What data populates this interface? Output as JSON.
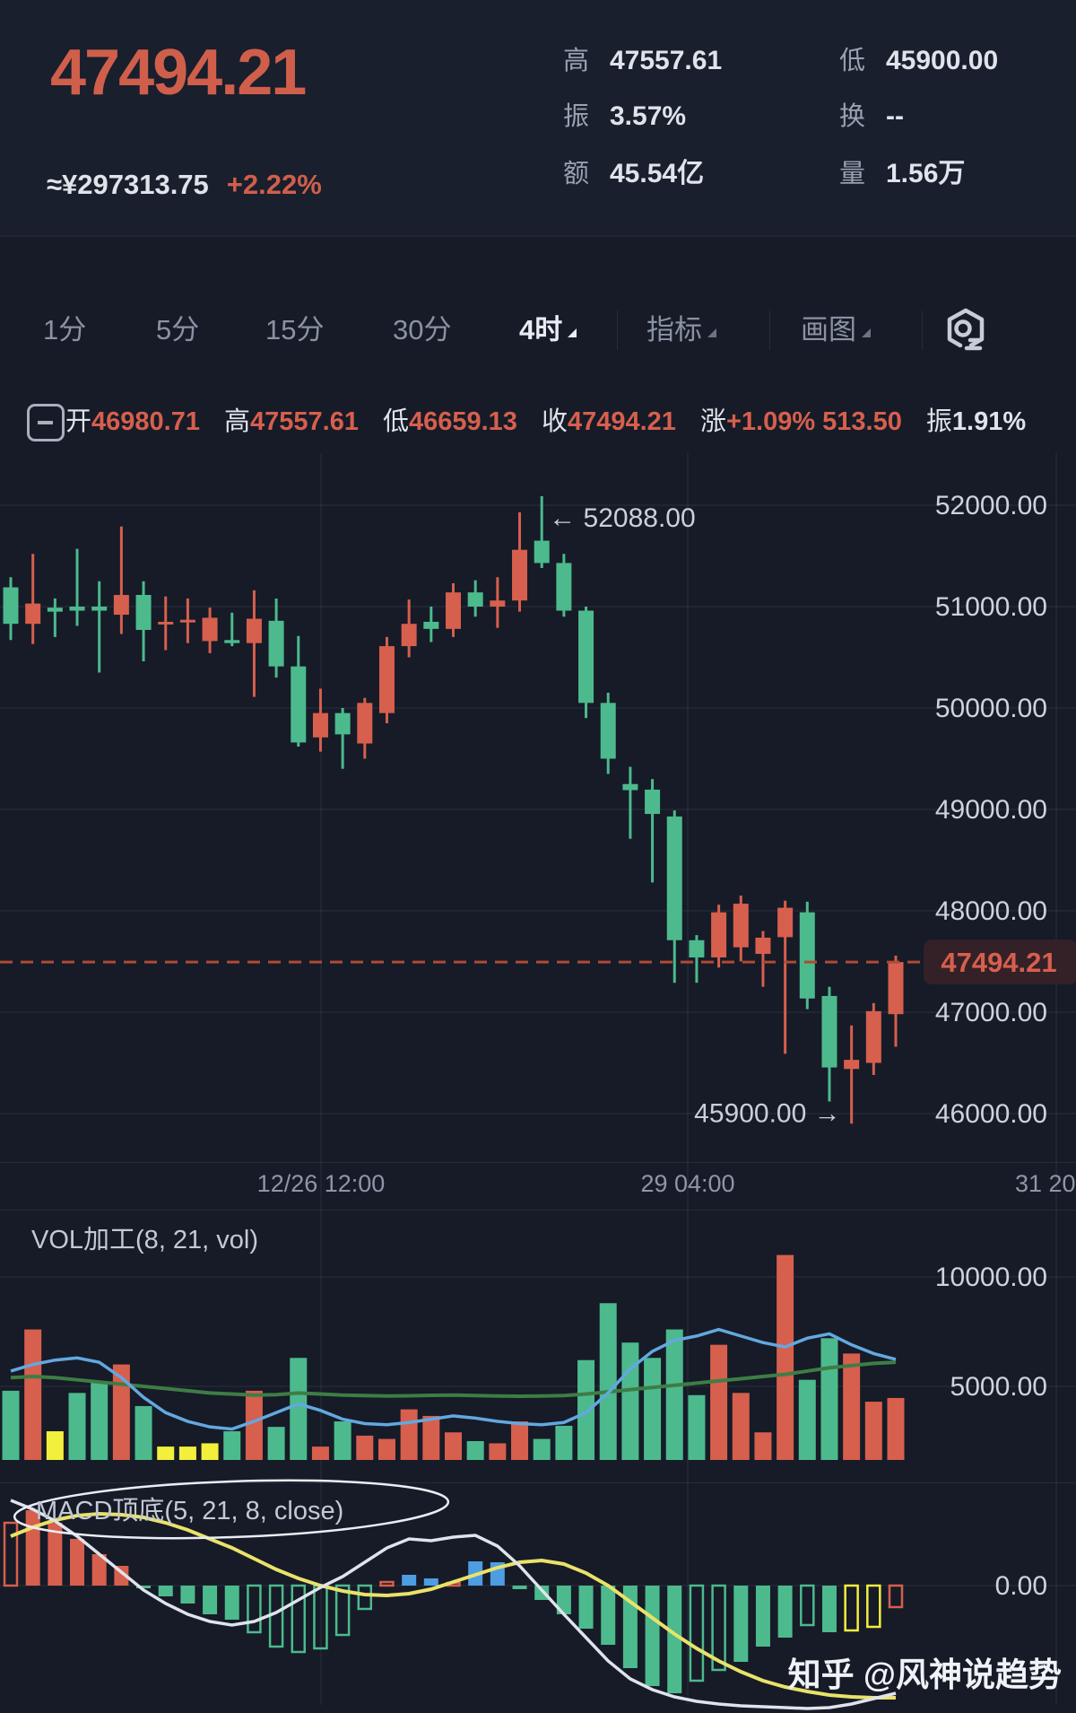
{
  "header": {
    "price": "47494.21",
    "approx_cny": "≈¥297313.75",
    "change_pct": "+2.22%",
    "stats_col1": [
      {
        "label": "高",
        "value": "47557.61"
      },
      {
        "label": "振",
        "value": "3.57%"
      },
      {
        "label": "额",
        "value": "45.54亿"
      }
    ],
    "stats_col2": [
      {
        "label": "低",
        "value": "45900.00"
      },
      {
        "label": "换",
        "value": "--"
      },
      {
        "label": "量",
        "value": "1.56万"
      }
    ]
  },
  "toolbar": {
    "tabs": [
      {
        "label": "1分",
        "selected": false,
        "caret": false
      },
      {
        "label": "5分",
        "selected": false,
        "caret": false
      },
      {
        "label": "15分",
        "selected": false,
        "caret": false
      },
      {
        "label": "30分",
        "selected": false,
        "caret": false
      },
      {
        "label": "4时",
        "selected": true,
        "caret": true
      },
      {
        "label": "指标",
        "selected": false,
        "caret": true
      },
      {
        "label": "画图",
        "selected": false,
        "caret": true
      }
    ],
    "settings_icon": "kline-settings-icon"
  },
  "ohlc_bar": {
    "items": [
      {
        "label": "开",
        "value": "46980.71",
        "plain": false
      },
      {
        "label": "高",
        "value": "47557.61",
        "plain": false
      },
      {
        "label": "低",
        "value": "46659.13",
        "plain": false
      },
      {
        "label": "收",
        "value": "47494.21",
        "plain": false
      },
      {
        "label": "涨",
        "value": "+1.09% 513.50",
        "plain": false
      },
      {
        "label": "振",
        "value": "1.91%",
        "plain": true
      }
    ]
  },
  "chart_data": {
    "type": "candlestick",
    "note": "Chinese color convention: red = up, green = down",
    "current_price": "47494.21",
    "high_annotation": "← 52088.00",
    "low_annotation": "45900.00 →",
    "y_ticks": [
      {
        "price": 52000,
        "label": "52000.00"
      },
      {
        "price": 51000,
        "label": "51000.00"
      },
      {
        "price": 50000,
        "label": "50000.00"
      },
      {
        "price": 49000,
        "label": "49000.00"
      },
      {
        "price": 48000,
        "label": "48000.00"
      },
      {
        "price": 47000,
        "label": "47000.00"
      },
      {
        "price": 46000,
        "label": "46000.00"
      }
    ],
    "x_ticks": [
      "12/26 12:00",
      "29 04:00",
      "31 20:"
    ],
    "candles_ohlc": [
      [
        51190,
        51290,
        50670,
        50830
      ],
      [
        50830,
        51520,
        50630,
        51030
      ],
      [
        50990,
        51080,
        50700,
        50950
      ],
      [
        51000,
        51570,
        50810,
        50960
      ],
      [
        51000,
        51250,
        50350,
        50960
      ],
      [
        50920,
        51790,
        50730,
        51115
      ],
      [
        51115,
        51250,
        50460,
        50770
      ],
      [
        50830,
        51100,
        50570,
        50850
      ],
      [
        50850,
        51080,
        50640,
        50870
      ],
      [
        50660,
        50990,
        50540,
        50890
      ],
      [
        50670,
        50940,
        50610,
        50640
      ],
      [
        50640,
        51160,
        50110,
        50880
      ],
      [
        50860,
        51080,
        50300,
        50410
      ],
      [
        50410,
        50710,
        49620,
        49660
      ],
      [
        49710,
        50190,
        49570,
        49950
      ],
      [
        49950,
        50000,
        49400,
        49740
      ],
      [
        49650,
        50100,
        49500,
        50050
      ],
      [
        49950,
        50700,
        49850,
        50610
      ],
      [
        50610,
        51070,
        50500,
        50830
      ],
      [
        50850,
        51000,
        50650,
        50780
      ],
      [
        50780,
        51230,
        50700,
        51140
      ],
      [
        51140,
        51260,
        50900,
        51000
      ],
      [
        51000,
        51290,
        50790,
        51060
      ],
      [
        51060,
        51930,
        50950,
        51560
      ],
      [
        51650,
        52088,
        51380,
        51430
      ],
      [
        51430,
        51520,
        50900,
        50960
      ],
      [
        50960,
        51000,
        49900,
        50050
      ],
      [
        50050,
        50150,
        49350,
        49500
      ],
      [
        49250,
        49420,
        48710,
        49190
      ],
      [
        49195,
        49300,
        48280,
        48955
      ],
      [
        48930,
        48990,
        47290,
        47710
      ],
      [
        47710,
        47760,
        47290,
        47540
      ],
      [
        47540,
        48060,
        47440,
        47985
      ],
      [
        47640,
        48150,
        47500,
        48070
      ],
      [
        47575,
        47800,
        47250,
        47735
      ],
      [
        47740,
        48100,
        46590,
        48030
      ],
      [
        47985,
        48090,
        47030,
        47135
      ],
      [
        47160,
        47250,
        46120,
        46455
      ],
      [
        46440,
        46870,
        45900,
        46530
      ],
      [
        46500,
        47090,
        46380,
        47010
      ],
      [
        46980.71,
        47557.61,
        46659.13,
        47494.21
      ]
    ],
    "volume": {
      "title": "VOL加工(8, 21, vol)",
      "ticks": [
        {
          "v": 10000,
          "label": "10000.00"
        },
        {
          "v": 5000,
          "label": "5000.00"
        }
      ],
      "bars": [
        [
          4800,
          "down"
        ],
        [
          7600,
          "up"
        ],
        [
          2950,
          "warn"
        ],
        [
          4700,
          "down"
        ],
        [
          5200,
          "down"
        ],
        [
          6000,
          "up"
        ],
        [
          4100,
          "down"
        ],
        [
          2250,
          "warn"
        ],
        [
          2250,
          "warn"
        ],
        [
          2400,
          "warn"
        ],
        [
          2950,
          "down"
        ],
        [
          4800,
          "up"
        ],
        [
          3150,
          "down"
        ],
        [
          6300,
          "down"
        ],
        [
          2250,
          "up"
        ],
        [
          3400,
          "down"
        ],
        [
          2750,
          "up"
        ],
        [
          2600,
          "up"
        ],
        [
          3950,
          "up"
        ],
        [
          3650,
          "up"
        ],
        [
          2900,
          "up"
        ],
        [
          2500,
          "down"
        ],
        [
          2400,
          "up"
        ],
        [
          3400,
          "up"
        ],
        [
          2600,
          "down"
        ],
        [
          3200,
          "down"
        ],
        [
          6200,
          "down"
        ],
        [
          8800,
          "down"
        ],
        [
          7000,
          "down"
        ],
        [
          6300,
          "down"
        ],
        [
          7600,
          "down"
        ],
        [
          4600,
          "down"
        ],
        [
          6900,
          "up"
        ],
        [
          4700,
          "up"
        ],
        [
          2900,
          "up"
        ],
        [
          11000,
          "up"
        ],
        [
          5300,
          "down"
        ],
        [
          7200,
          "down"
        ],
        [
          6500,
          "up"
        ],
        [
          4300,
          "up"
        ],
        [
          4470,
          "up"
        ]
      ],
      "ma_fast": [
        5700,
        6000,
        6200,
        6300,
        6100,
        5400,
        4500,
        3800,
        3400,
        3150,
        3050,
        3400,
        3800,
        4200,
        3900,
        3500,
        3300,
        3250,
        3350,
        3500,
        3650,
        3550,
        3400,
        3300,
        3250,
        3350,
        3800,
        4700,
        5800,
        6600,
        7100,
        7300,
        7600,
        7300,
        7000,
        6800,
        7200,
        7400,
        6900,
        6500,
        6230
      ],
      "ma_slow": [
        5400,
        5450,
        5400,
        5300,
        5200,
        5100,
        5000,
        4900,
        4800,
        4700,
        4650,
        4600,
        4620,
        4700,
        4650,
        4600,
        4580,
        4560,
        4570,
        4590,
        4600,
        4580,
        4560,
        4550,
        4560,
        4580,
        4650,
        4750,
        4850,
        4950,
        5050,
        5150,
        5250,
        5350,
        5450,
        5550,
        5700,
        5850,
        5950,
        6050,
        6100
      ]
    },
    "macd": {
      "title": "MACD顶底(5, 21, 8, close)",
      "zero_label": "0.00",
      "bars": [
        [
          70,
          "up",
          "h"
        ],
        [
          84,
          "up",
          "f"
        ],
        [
          70,
          "up",
          "f"
        ],
        [
          52,
          "up",
          "f"
        ],
        [
          35,
          "up",
          "f"
        ],
        [
          22,
          "up",
          "f"
        ],
        [
          -3,
          "down",
          "f"
        ],
        [
          -12,
          "down",
          "f"
        ],
        [
          -20,
          "down",
          "f"
        ],
        [
          -32,
          "down",
          "f"
        ],
        [
          -38,
          "down",
          "f"
        ],
        [
          -52,
          "down",
          "h"
        ],
        [
          -68,
          "down",
          "h"
        ],
        [
          -74,
          "down",
          "h"
        ],
        [
          -70,
          "down",
          "h"
        ],
        [
          -55,
          "down",
          "h"
        ],
        [
          -26,
          "down",
          "h"
        ],
        [
          4,
          "up",
          "h"
        ],
        [
          12,
          "blue",
          "f"
        ],
        [
          8,
          "blue",
          "f"
        ],
        [
          3,
          "up",
          "h"
        ],
        [
          27,
          "blue",
          "f"
        ],
        [
          26,
          "blue",
          "f"
        ],
        [
          -4,
          "down",
          "f"
        ],
        [
          -16,
          "down",
          "f"
        ],
        [
          -32,
          "down",
          "f"
        ],
        [
          -48,
          "down",
          "f"
        ],
        [
          -66,
          "down",
          "f"
        ],
        [
          -92,
          "down",
          "f"
        ],
        [
          -112,
          "down",
          "f"
        ],
        [
          -120,
          "down",
          "f"
        ],
        [
          -106,
          "down",
          "h"
        ],
        [
          -94,
          "down",
          "h"
        ],
        [
          -85,
          "down",
          "f"
        ],
        [
          -68,
          "down",
          "f"
        ],
        [
          -58,
          "down",
          "f"
        ],
        [
          -44,
          "down",
          "h"
        ],
        [
          -52,
          "down",
          "f"
        ],
        [
          -50,
          "warn",
          "h"
        ],
        [
          -46,
          "warn",
          "h"
        ],
        [
          -24,
          "up",
          "h"
        ]
      ],
      "dif_line": [
        95,
        85,
        72,
        55,
        35,
        15,
        -5,
        -20,
        -32,
        -40,
        -44,
        -40,
        -30,
        -16,
        -2,
        10,
        26,
        42,
        52,
        50,
        54,
        56,
        44,
        22,
        -5,
        -32,
        -58,
        -84,
        -104,
        -116,
        -124,
        -129,
        -132,
        -134,
        -135,
        -136,
        -137,
        -136,
        -132,
        -126,
        -120
      ],
      "dea_line": [
        55,
        65,
        73,
        78,
        80,
        79,
        76,
        70,
        62,
        52,
        42,
        30,
        18,
        8,
        0,
        -6,
        -10,
        -11,
        -9,
        -4,
        4,
        12,
        20,
        26,
        28,
        24,
        14,
        0,
        -18,
        -36,
        -54,
        -70,
        -84,
        -96,
        -106,
        -113,
        -118,
        -122,
        -124,
        -125,
        -125
      ]
    }
  },
  "watermark": "知乎 @风神说趋势",
  "colors": {
    "bg": "#161b27",
    "header_bg": "#191f2c",
    "up": "#d75f4d",
    "down": "#4cba8d",
    "accent_text": "#cf5f4b",
    "text_bright": "#e9ecf2",
    "text_dim": "#99a1b2",
    "axis_text": "#ccd3df",
    "time_text": "#8e96a8",
    "vol_warn": "#f3ef3d",
    "macd_blue": "#4d9de3",
    "macd_dea_line": "#e9e26a",
    "macd_dif_line": "#dfe3ec",
    "vol_ma_fast": "#63a8e0",
    "vol_ma_slow": "#3e7d45",
    "dashed_line": "#b04a33",
    "badge_bg": "#332127",
    "annotation_text": "#c9cfdb",
    "grid": "rgba(200,212,235,0.08)"
  }
}
